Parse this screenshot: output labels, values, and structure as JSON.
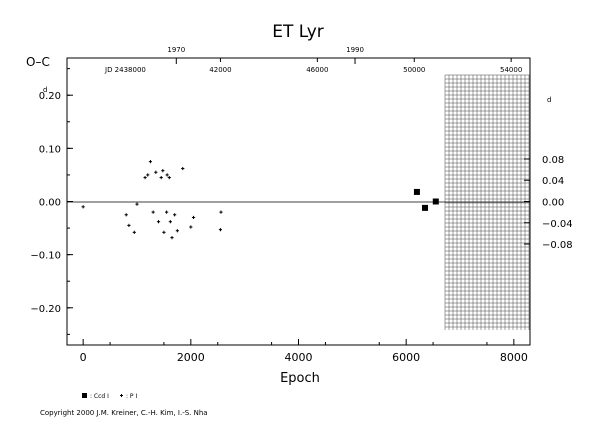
{
  "chart_data": {
    "type": "scatter",
    "title": "ET  Lyr",
    "ylabel": "O–C",
    "ylabel_unit": "d",
    "xlabel": "Epoch",
    "xlim": [
      -300,
      8300
    ],
    "ylim": [
      -0.27,
      0.27
    ],
    "y_right_lim": [
      -0.27,
      0.27
    ],
    "grid": "hatched region x > 6550 on right axis only",
    "x_ticks": [
      {
        "value": 0,
        "label": "0"
      },
      {
        "value": 2000,
        "label": "2000"
      },
      {
        "value": 4000,
        "label": "4000"
      },
      {
        "value": 6000,
        "label": "6000"
      },
      {
        "value": 8000,
        "label": "8000"
      }
    ],
    "y_ticks": [
      {
        "value": 0.2,
        "label": "0.20"
      },
      {
        "value": 0.1,
        "label": "0.10"
      },
      {
        "value": 0.0,
        "label": "0.00"
      },
      {
        "value": -0.1,
        "label": "−0.10"
      },
      {
        "value": -0.2,
        "label": "−0.20"
      }
    ],
    "y_right_ticks": [
      {
        "value": 0.08,
        "label": "0.08"
      },
      {
        "value": 0.04,
        "label": "0.04"
      },
      {
        "value": 0.0,
        "label": "0.00"
      },
      {
        "value": -0.04,
        "label": "−0.04"
      },
      {
        "value": -0.08,
        "label": "−0.08"
      }
    ],
    "year_ticks": [
      {
        "epoch": 1730,
        "label": "1970"
      },
      {
        "epoch": 5050,
        "label": "1990"
      }
    ],
    "jd_label": "JD 2438000",
    "jd_ticks": [
      {
        "epoch": 2550,
        "label": "42000"
      },
      {
        "epoch": 4350,
        "label": "46000"
      },
      {
        "epoch": 6150,
        "label": "50000"
      },
      {
        "epoch": 7950,
        "label": "54000"
      }
    ],
    "series": [
      {
        "name": ": Ccd  I",
        "marker": "square",
        "points": [
          {
            "x": 6200,
            "y": 0.018
          },
          {
            "x": 6350,
            "y": -0.012
          },
          {
            "x": 6550,
            "y": 0.0
          }
        ]
      },
      {
        "name": ": P  I",
        "marker": "plus",
        "points": [
          {
            "x": 0,
            "y": -0.01
          },
          {
            "x": 800,
            "y": -0.025
          },
          {
            "x": 850,
            "y": -0.045
          },
          {
            "x": 950,
            "y": -0.058
          },
          {
            "x": 1000,
            "y": -0.005
          },
          {
            "x": 1150,
            "y": 0.045
          },
          {
            "x": 1200,
            "y": 0.05
          },
          {
            "x": 1250,
            "y": 0.075
          },
          {
            "x": 1300,
            "y": -0.02
          },
          {
            "x": 1350,
            "y": 0.055
          },
          {
            "x": 1400,
            "y": -0.038
          },
          {
            "x": 1450,
            "y": 0.045
          },
          {
            "x": 1480,
            "y": 0.058
          },
          {
            "x": 1500,
            "y": -0.058
          },
          {
            "x": 1550,
            "y": -0.02
          },
          {
            "x": 1560,
            "y": 0.05
          },
          {
            "x": 1600,
            "y": 0.045
          },
          {
            "x": 1620,
            "y": -0.038
          },
          {
            "x": 1650,
            "y": -0.068
          },
          {
            "x": 1700,
            "y": -0.025
          },
          {
            "x": 1750,
            "y": -0.055
          },
          {
            "x": 1850,
            "y": 0.062
          },
          {
            "x": 2000,
            "y": -0.048
          },
          {
            "x": 2050,
            "y": -0.03
          },
          {
            "x": 2550,
            "y": -0.053
          },
          {
            "x": 2560,
            "y": -0.02
          }
        ]
      }
    ]
  },
  "copyright": "Copyright 2000 J.M. Kreiner, C.-H. Kim, I.-S. Nha"
}
